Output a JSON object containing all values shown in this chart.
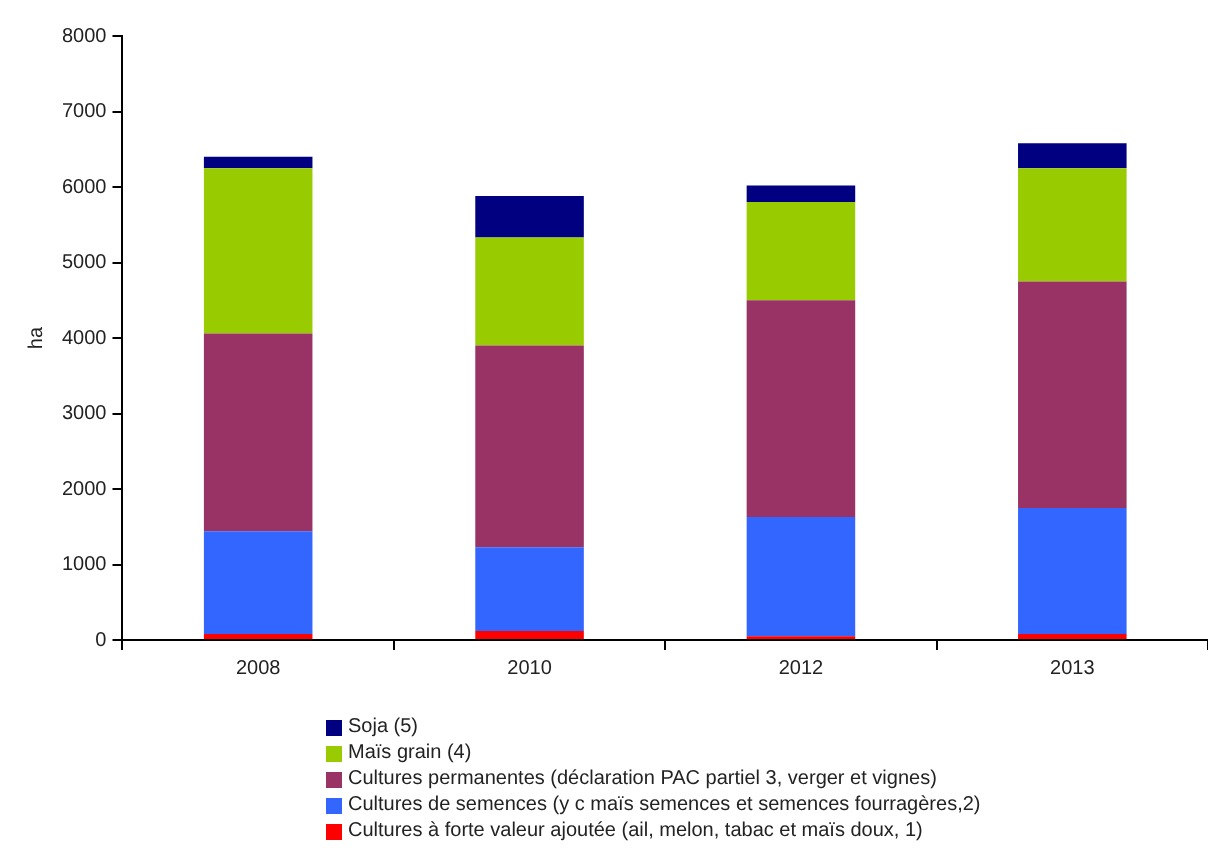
{
  "chart_data": {
    "type": "bar",
    "ylabel": "ha",
    "categories": [
      "2008",
      "2010",
      "2012",
      "2013"
    ],
    "stacked": true,
    "series": [
      {
        "name": "Cultures à forte valeur ajoutée (ail, melon, tabac et maïs doux, 1)",
        "color": "#ff0000",
        "values": [
          80,
          120,
          50,
          80
        ]
      },
      {
        "name": "Cultures de semences (y c maïs semences et semences fourragères,2)",
        "color": "#3366ff",
        "values": [
          1360,
          1110,
          1580,
          1670
        ]
      },
      {
        "name": "Cultures permanentes (déclaration PAC partiel 3, verger et vignes)",
        "color": "#993366",
        "values": [
          2620,
          2670,
          2870,
          3000
        ]
      },
      {
        "name": "Maïs grain (4)",
        "color": "#99cc00",
        "values": [
          2190,
          1430,
          1300,
          1500
        ]
      },
      {
        "name": "Soja (5)",
        "color": "#000080",
        "values": [
          150,
          550,
          220,
          330
        ]
      }
    ],
    "ylim": [
      0,
      8000
    ],
    "yticks": [
      0,
      1000,
      2000,
      3000,
      4000,
      5000,
      6000,
      7000,
      8000
    ],
    "grid": false,
    "legend": "bottom"
  }
}
